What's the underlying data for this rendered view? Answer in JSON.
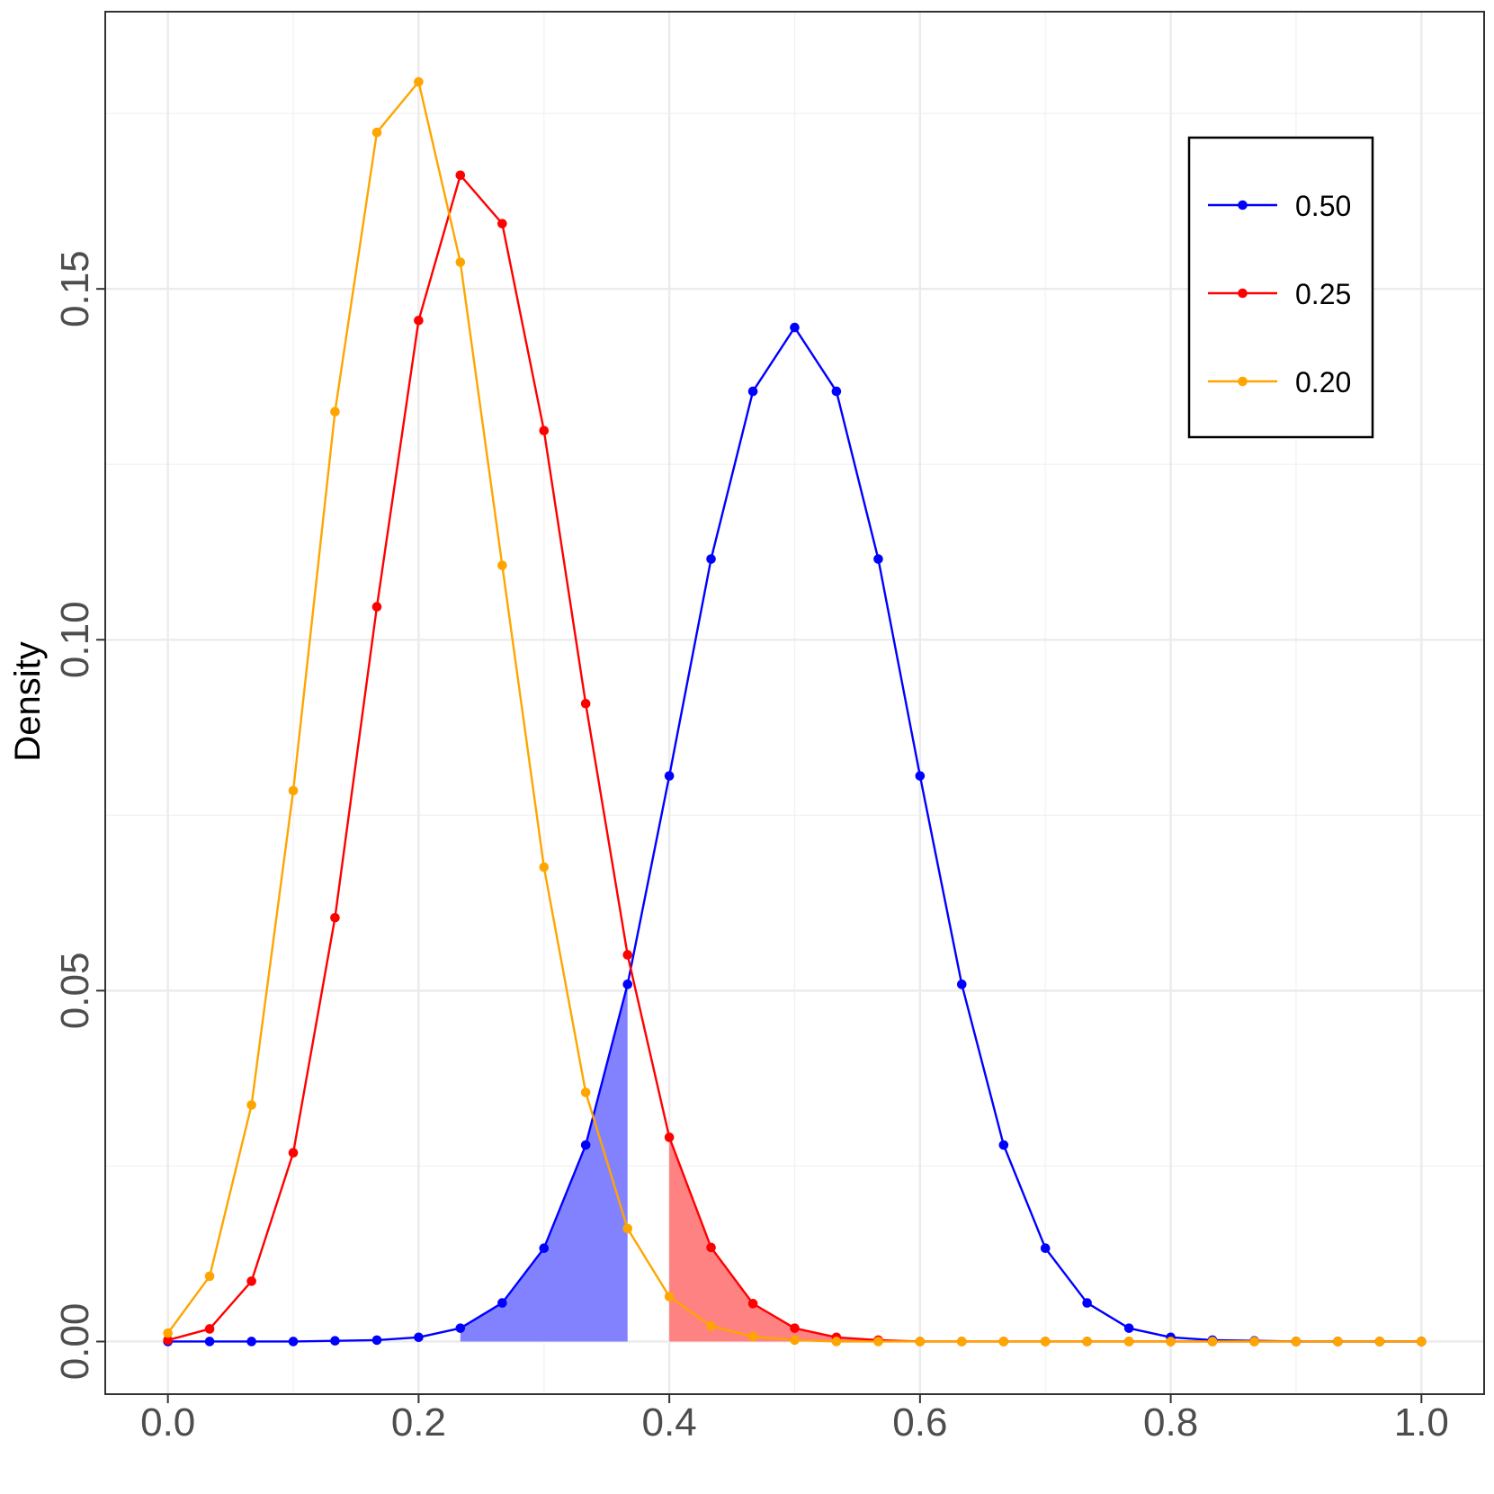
{
  "chart_data": {
    "type": "line",
    "title": "",
    "xlabel": "",
    "ylabel": "Density",
    "xlim": [
      -0.05,
      1.05
    ],
    "ylim": [
      -0.0075,
      0.1895
    ],
    "grid": true,
    "legend_position": "top-right",
    "x_ticks": [
      {
        "value": 0.0,
        "label": "0.0"
      },
      {
        "value": 0.2,
        "label": "0.2"
      },
      {
        "value": 0.4,
        "label": "0.4"
      },
      {
        "value": 0.6,
        "label": "0.6"
      },
      {
        "value": 0.8,
        "label": "0.8"
      },
      {
        "value": 1.0,
        "label": "1.0"
      }
    ],
    "y_ticks": [
      {
        "value": 0.0,
        "label": "0.00"
      },
      {
        "value": 0.05,
        "label": "0.05"
      },
      {
        "value": 0.1,
        "label": "0.10"
      },
      {
        "value": 0.15,
        "label": "0.15"
      }
    ],
    "x": [
      0.0,
      0.0333,
      0.0667,
      0.1,
      0.1333,
      0.1667,
      0.2,
      0.2333,
      0.2667,
      0.3,
      0.3333,
      0.3667,
      0.4,
      0.4333,
      0.4667,
      0.5,
      0.5333,
      0.5667,
      0.6,
      0.6333,
      0.6667,
      0.7,
      0.7333,
      0.7667,
      0.8,
      0.8333,
      0.8667,
      0.9,
      0.9333,
      0.9667,
      1.0
    ],
    "series": [
      {
        "name": "0.50",
        "color": "#0000ff",
        "values": [
          0.0,
          0.0,
          0.0,
          0.0,
          0.0001,
          0.0002,
          0.0006,
          0.0019,
          0.0055,
          0.0133,
          0.028,
          0.0509,
          0.0806,
          0.1115,
          0.1354,
          0.1445,
          0.1354,
          0.1115,
          0.0806,
          0.0509,
          0.028,
          0.0133,
          0.0055,
          0.0019,
          0.0006,
          0.0002,
          0.0001,
          0.0,
          0.0,
          0.0,
          0.0
        ],
        "shade": {
          "from": 0.2333,
          "to": 0.3667,
          "fill": "#8080ff"
        }
      },
      {
        "name": "0.25",
        "color": "#ff0000",
        "values": [
          0.0002,
          0.0018,
          0.0086,
          0.0269,
          0.0604,
          0.1047,
          0.1455,
          0.1662,
          0.1593,
          0.1298,
          0.0909,
          0.0551,
          0.0291,
          0.0134,
          0.0054,
          0.0019,
          0.0006,
          0.0002,
          0.0,
          0.0,
          0.0,
          0.0,
          0.0,
          0.0,
          0.0,
          0.0,
          0.0,
          0.0,
          0.0,
          0.0,
          0.0
        ],
        "shade": {
          "from": 0.4,
          "to": 1.0,
          "fill": "#ff8080"
        }
      },
      {
        "name": "0.20",
        "color": "#ffa500",
        "values": [
          0.0012,
          0.0093,
          0.0337,
          0.0785,
          0.1325,
          0.1723,
          0.1795,
          0.1538,
          0.1106,
          0.0676,
          0.0355,
          0.0161,
          0.0064,
          0.0022,
          0.0007,
          0.0002,
          0.0,
          0.0,
          0.0,
          0.0,
          0.0,
          0.0,
          0.0,
          0.0,
          0.0,
          0.0,
          0.0,
          0.0,
          0.0,
          0.0,
          0.0
        ]
      }
    ]
  }
}
